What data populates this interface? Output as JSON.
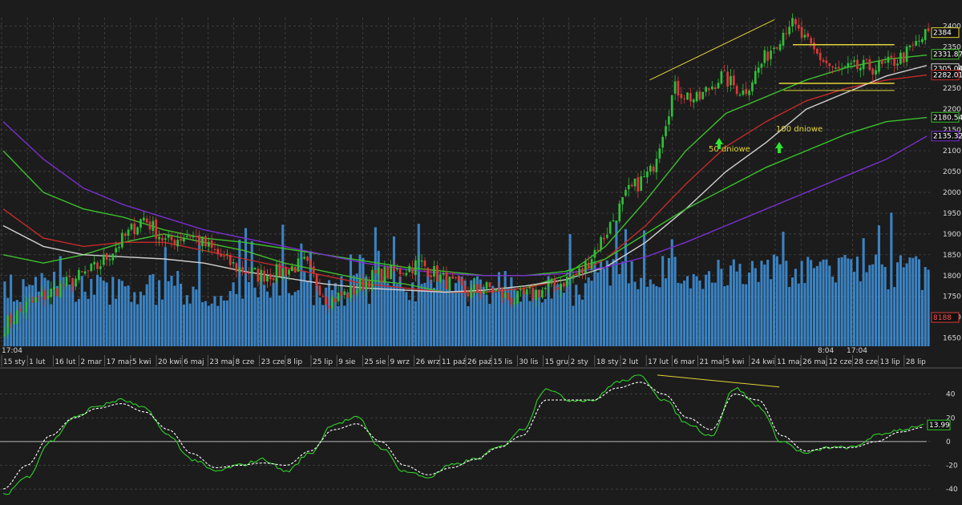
{
  "colors": {
    "background": "#1c1c1c",
    "grid": "#4a4a4a",
    "volume": "#3f8fd6",
    "candle_up": "#2fbf3a",
    "candle_down": "#d83a3a",
    "ma_50": "#3fbf2f",
    "ma_100": "#c62a2a",
    "ma_200": "#d0d0d0",
    "ma_long_green": "#39c12b",
    "ma_purple": "#7a2fd0",
    "trend_line": "#e2d43a",
    "osc_main": "#2fd02a",
    "osc_signal": "#ffffff",
    "up_arrow": "#2ee62e"
  },
  "chart_data": [
    {
      "type": "candlestick",
      "title": "",
      "ylim": [
        1630,
        2420
      ],
      "y_ticks": [
        1650,
        1700,
        1750,
        1800,
        1850,
        1900,
        1950,
        2000,
        2050,
        2100,
        2150,
        2200,
        2250,
        2300,
        2350,
        2400
      ],
      "x_ticks": [
        "15 sty",
        "1 lut",
        "16 lut",
        "2 mar",
        "17 mar",
        "5 kwi",
        "20 kwi",
        "6 maj",
        "23 maj",
        "8 cze",
        "23 cze",
        "8 lip",
        "25 lip",
        "9 sie",
        "25 sie",
        "9 wrz",
        "26 wrz",
        "11 paź",
        "26 paź",
        "15 lis",
        "30 lis",
        "15 gru",
        "2 sty",
        "18 sty",
        "2 lut",
        "17 lut",
        "6 mar",
        "21 mar",
        "5 kwi",
        "24 kwi",
        "11 maj",
        "26 maj",
        "12 cze",
        "28 cze",
        "13 lip",
        "28 lip"
      ],
      "close_path": [
        1680,
        1730,
        1760,
        1790,
        1820,
        1880,
        1940,
        1880,
        1900,
        1860,
        1820,
        1800,
        1810,
        1830,
        1740,
        1760,
        1800,
        1810,
        1830,
        1790,
        1760,
        1770,
        1740,
        1760,
        1780,
        1810,
        1900,
        2000,
        2050,
        2250,
        2220,
        2280,
        2240,
        2330,
        2410,
        2340,
        2290,
        2300,
        2300,
        2330,
        2385
      ],
      "price_tags": [
        2384,
        2331.87,
        2305.04,
        2282.01,
        2180.54,
        2135.32
      ],
      "volume_tag": "8188",
      "grid": true,
      "moving_averages": [
        {
          "label": "50 dniowe",
          "values": [
            1850,
            1830,
            1850,
            1880,
            1900,
            1880,
            1860,
            1830,
            1810,
            1790,
            1780,
            1760,
            1760,
            1770,
            1800,
            1870,
            1980,
            2100,
            2190,
            2230,
            2270,
            2300,
            2320,
            2330
          ]
        },
        {
          "label": "100 dniowe",
          "values": [
            1960,
            1890,
            1870,
            1880,
            1880,
            1860,
            1840,
            1820,
            1800,
            1780,
            1770,
            1760,
            1760,
            1770,
            1790,
            1840,
            1920,
            2020,
            2110,
            2170,
            2220,
            2250,
            2270,
            2282
          ]
        },
        {
          "label": "",
          "values": [
            1920,
            1870,
            1850,
            1845,
            1840,
            1830,
            1810,
            1795,
            1780,
            1770,
            1765,
            1760,
            1765,
            1775,
            1790,
            1820,
            1880,
            1960,
            2050,
            2120,
            2200,
            2240,
            2280,
            2305
          ]
        },
        {
          "label": "",
          "values": [
            2100,
            2000,
            1960,
            1940,
            1910,
            1890,
            1880,
            1865,
            1850,
            1835,
            1820,
            1810,
            1800,
            1800,
            1810,
            1840,
            1900,
            1960,
            2010,
            2060,
            2100,
            2140,
            2170,
            2180
          ]
        },
        {
          "label": "",
          "values": [
            2170,
            2080,
            2010,
            1970,
            1940,
            1910,
            1890,
            1870,
            1850,
            1830,
            1815,
            1805,
            1800,
            1800,
            1805,
            1820,
            1845,
            1880,
            1920,
            1960,
            2000,
            2040,
            2080,
            2135
          ]
        }
      ],
      "annotations": [
        "50 dniowe",
        "100 dniowe"
      ],
      "crosshair_labels": [
        "17:04",
        "8:04",
        "17:04"
      ]
    },
    {
      "type": "line",
      "title": "",
      "ylim": [
        -48,
        60
      ],
      "y_ticks": [
        40,
        20,
        0,
        -20,
        -40
      ],
      "reference_line": 0,
      "value_tag": "13.99",
      "series": [
        {
          "values": [
            -45,
            -30,
            0,
            20,
            30,
            35,
            28,
            5,
            -15,
            -25,
            -20,
            -15,
            -25,
            -10,
            15,
            20,
            -5,
            -25,
            -30,
            -20,
            -15,
            -5,
            10,
            45,
            35,
            35,
            50,
            55,
            35,
            15,
            5,
            45,
            30,
            0,
            -10,
            -5,
            -5,
            5,
            10,
            13.99
          ]
        },
        {
          "values": [
            -40,
            -20,
            5,
            20,
            28,
            32,
            25,
            10,
            -10,
            -22,
            -20,
            -18,
            -20,
            -8,
            10,
            15,
            0,
            -20,
            -28,
            -22,
            -15,
            -5,
            5,
            35,
            35,
            35,
            45,
            50,
            40,
            20,
            10,
            40,
            35,
            5,
            -8,
            -5,
            -5,
            0,
            8,
            12
          ]
        }
      ]
    }
  ]
}
